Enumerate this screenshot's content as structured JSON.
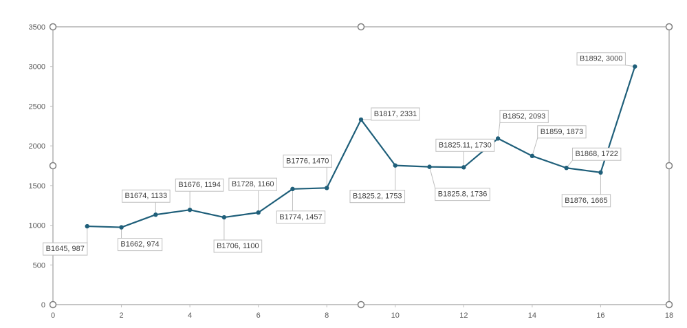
{
  "chart_data": {
    "type": "scatter",
    "title": "",
    "xlabel": "",
    "ylabel": "",
    "xlim": [
      0,
      18
    ],
    "ylim": [
      0,
      3500
    ],
    "x_ticks": [
      "0",
      "2",
      "4",
      "6",
      "8",
      "10",
      "12",
      "14",
      "16",
      "18"
    ],
    "y_ticks": [
      "0",
      "500",
      "1000",
      "1500",
      "2000",
      "2500",
      "3000",
      "3500"
    ],
    "grid": false,
    "legend": "none",
    "series": [
      {
        "color": "#1f5f7a",
        "points": [
          {
            "x": 1,
            "y": 987,
            "label": "B1645, 987"
          },
          {
            "x": 2,
            "y": 974,
            "label": "B1662, 974"
          },
          {
            "x": 3,
            "y": 1133,
            "label": "B1674, 1133"
          },
          {
            "x": 4,
            "y": 1194,
            "label": "B1676, 1194"
          },
          {
            "x": 5,
            "y": 1100,
            "label": "B1706, 1100"
          },
          {
            "x": 6,
            "y": 1160,
            "label": "B1728, 1160"
          },
          {
            "x": 7,
            "y": 1457,
            "label": "B1774, 1457"
          },
          {
            "x": 8,
            "y": 1470,
            "label": "B1776, 1470"
          },
          {
            "x": 9,
            "y": 2331,
            "label": "B1817, 2331"
          },
          {
            "x": 10,
            "y": 1753,
            "label": "B1825.2, 1753"
          },
          {
            "x": 11,
            "y": 1736,
            "label": "B1825.8, 1736"
          },
          {
            "x": 12,
            "y": 1730,
            "label": "B1825.11, 1730"
          },
          {
            "x": 13,
            "y": 2093,
            "label": "B1852, 2093"
          },
          {
            "x": 14,
            "y": 1873,
            "label": "B1859, 1873"
          },
          {
            "x": 15,
            "y": 1722,
            "label": "B1868, 1722"
          },
          {
            "x": 16,
            "y": 1665,
            "label": "B1876, 1665"
          },
          {
            "x": 17,
            "y": 3000,
            "label": "B1892, 3000"
          }
        ]
      }
    ]
  }
}
